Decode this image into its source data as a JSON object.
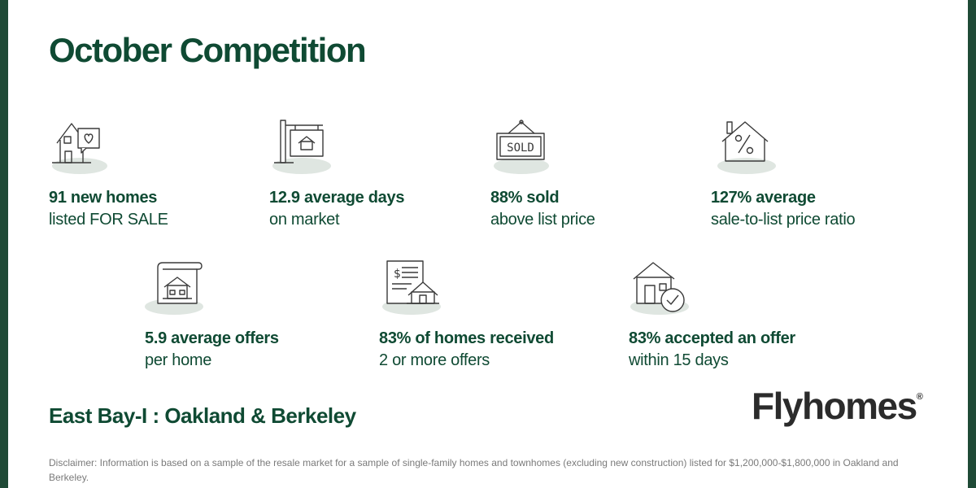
{
  "title": "October Competition",
  "stats": [
    {
      "icon": "house-heart-icon",
      "headline": "91 new homes",
      "subline": "listed FOR SALE"
    },
    {
      "icon": "for-sale-sign-icon",
      "headline": "12.9 average days",
      "subline": "on market"
    },
    {
      "icon": "sold-sign-icon",
      "headline": "88% sold",
      "subline": "above list price"
    },
    {
      "icon": "house-percent-icon",
      "headline": "127% average",
      "subline": "sale-to-list price ratio"
    },
    {
      "icon": "house-document-icon",
      "headline": "5.9  average offers",
      "subline": "per home"
    },
    {
      "icon": "receipt-house-icon",
      "headline": "83% of homes received",
      "subline": "2 or more offers"
    },
    {
      "icon": "house-checkmark-icon",
      "headline": "83% accepted an offer",
      "subline": "within 15 days"
    }
  ],
  "region": "East Bay-I : Oakland & Berkeley",
  "logo": {
    "text": "Flyhomes",
    "mark": "®"
  },
  "disclaimer": "Disclaimer: Information is based on a sample of the resale market for a sample of single-family homes and townhomes (excluding new construction) listed for $1,200,000-$1,800,000 in Oakland and Berkeley.",
  "colors": {
    "brand_green": "#0f4a33",
    "frame": "#1f4a36",
    "icon_shadow": "#dfe6e1",
    "icon_line": "#3a3a3a"
  }
}
